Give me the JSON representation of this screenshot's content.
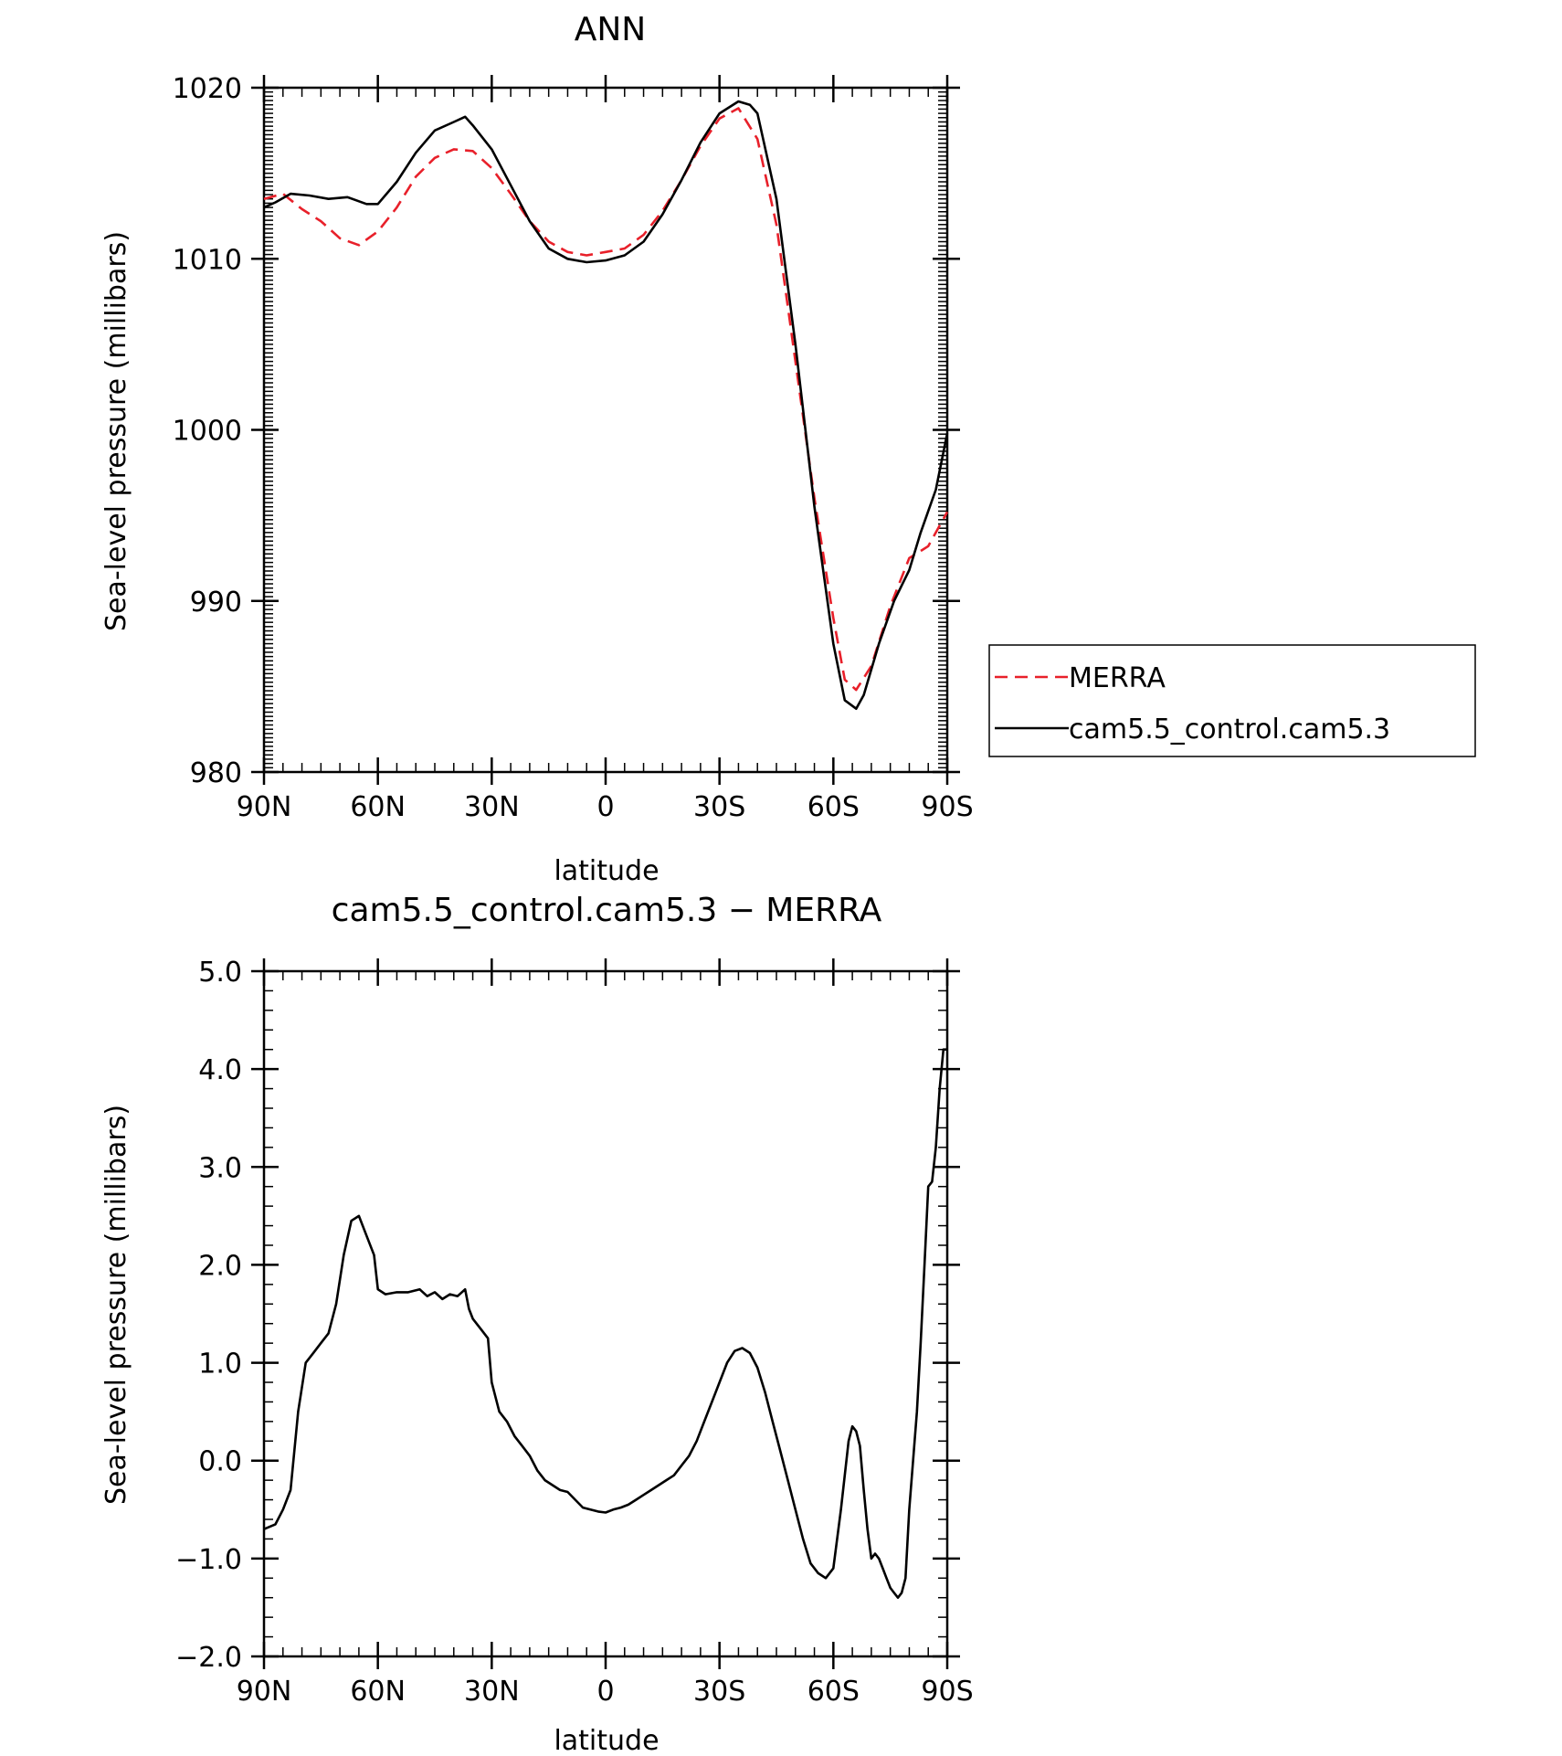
{
  "chart_data": [
    {
      "type": "line",
      "title": "ANN",
      "xlabel": "latitude",
      "ylabel": "Sea-level pressure (millibars)",
      "xlim": [
        90,
        -90
      ],
      "ylim": [
        980,
        1020
      ],
      "x_ticks": [
        {
          "value": 90,
          "label": "90N"
        },
        {
          "value": 60,
          "label": "60N"
        },
        {
          "value": 30,
          "label": "30N"
        },
        {
          "value": 0,
          "label": "0"
        },
        {
          "value": -30,
          "label": "30S"
        },
        {
          "value": -60,
          "label": "60S"
        },
        {
          "value": -90,
          "label": "90S"
        }
      ],
      "y_ticks": [
        {
          "value": 1020,
          "label": "1020"
        },
        {
          "value": 1010,
          "label": "1010"
        },
        {
          "value": 1000,
          "label": "1000"
        },
        {
          "value": 990,
          "label": "990"
        },
        {
          "value": 980,
          "label": "980"
        }
      ],
      "grid": false,
      "legend_position": "right",
      "series": [
        {
          "name": "MERRA",
          "color": "#e8202a",
          "dash": "dashed",
          "x": [
            90,
            85,
            80,
            75,
            70,
            65,
            60,
            55,
            50,
            45,
            40,
            35,
            30,
            25,
            20,
            15,
            10,
            5,
            0,
            -5,
            -10,
            -15,
            -20,
            -25,
            -30,
            -35,
            -40,
            -45,
            -50,
            -55,
            -60,
            -63,
            -66,
            -70,
            -75,
            -80,
            -85,
            -90
          ],
          "y": [
            1013.5,
            1013.8,
            1012.9,
            1012.2,
            1011.2,
            1010.8,
            1011.6,
            1013.0,
            1014.8,
            1015.9,
            1016.4,
            1016.3,
            1015.3,
            1013.8,
            1012.2,
            1011.0,
            1010.4,
            1010.2,
            1010.4,
            1010.6,
            1011.4,
            1012.8,
            1014.6,
            1016.6,
            1018.2,
            1018.8,
            1017.0,
            1012.0,
            1004.0,
            996.0,
            989.0,
            985.4,
            984.8,
            986.2,
            989.7,
            992.5,
            993.2,
            995.2
          ]
        },
        {
          "name": "cam5.5_control.cam5.3",
          "color": "#000000",
          "dash": "solid",
          "x": [
            90,
            87,
            83,
            78,
            73,
            68,
            63,
            60,
            55,
            50,
            45,
            40,
            37,
            35,
            30,
            25,
            20,
            15,
            10,
            5,
            0,
            -5,
            -10,
            -15,
            -20,
            -25,
            -30,
            -35,
            -38,
            -40,
            -45,
            -50,
            -55,
            -60,
            -63,
            -66,
            -68,
            -72,
            -76,
            -80,
            -83,
            -87,
            -90
          ],
          "y": [
            1013.0,
            1013.3,
            1013.8,
            1013.7,
            1013.5,
            1013.6,
            1013.2,
            1013.2,
            1014.5,
            1016.2,
            1017.5,
            1018.0,
            1018.3,
            1017.8,
            1016.4,
            1014.3,
            1012.2,
            1010.6,
            1010.0,
            1009.8,
            1009.9,
            1010.2,
            1011.0,
            1012.6,
            1014.6,
            1016.8,
            1018.5,
            1019.2,
            1019.0,
            1018.5,
            1013.5,
            1005.0,
            995.5,
            987.5,
            984.2,
            983.7,
            984.5,
            987.5,
            990.0,
            991.8,
            994.0,
            996.5,
            999.8
          ]
        }
      ]
    },
    {
      "type": "line",
      "title": "cam5.5_control.cam5.3 − MERRA",
      "xlabel": "latitude",
      "ylabel": "Sea-level pressure (millibars)",
      "xlim": [
        90,
        -90
      ],
      "ylim": [
        -2.0,
        5.0
      ],
      "x_ticks": [
        {
          "value": 90,
          "label": "90N"
        },
        {
          "value": 60,
          "label": "60N"
        },
        {
          "value": 30,
          "label": "30N"
        },
        {
          "value": 0,
          "label": "0"
        },
        {
          "value": -30,
          "label": "30S"
        },
        {
          "value": -60,
          "label": "60S"
        },
        {
          "value": -90,
          "label": "90S"
        }
      ],
      "y_ticks": [
        {
          "value": 5.0,
          "label": "5.0"
        },
        {
          "value": 4.0,
          "label": "4.0"
        },
        {
          "value": 3.0,
          "label": "3.0"
        },
        {
          "value": 2.0,
          "label": "2.0"
        },
        {
          "value": 1.0,
          "label": "1.0"
        },
        {
          "value": 0.0,
          "label": "0.0"
        },
        {
          "value": -1.0,
          "label": "−1.0"
        },
        {
          "value": -2.0,
          "label": "−2.0"
        }
      ],
      "grid": false,
      "series": [
        {
          "color": "#000000",
          "dash": "solid",
          "x": [
            90,
            87,
            85,
            83,
            81,
            79,
            77,
            75,
            73,
            71,
            69,
            67,
            65,
            63,
            61,
            60,
            58,
            55,
            52,
            49,
            47,
            45,
            43,
            41,
            39,
            37,
            36,
            35,
            33,
            31,
            30,
            28,
            26,
            24,
            22,
            20,
            18,
            16,
            14,
            12,
            10,
            8,
            6,
            4,
            2,
            0,
            -2,
            -4,
            -6,
            -8,
            -10,
            -12,
            -14,
            -16,
            -18,
            -20,
            -22,
            -24,
            -26,
            -28,
            -30,
            -32,
            -34,
            -36,
            -38,
            -40,
            -42,
            -44,
            -46,
            -48,
            -50,
            -52,
            -54,
            -56,
            -58,
            -60,
            -62,
            -64,
            -65,
            -66,
            -67,
            -68,
            -69,
            -70,
            -71,
            -72,
            -73,
            -74,
            -75,
            -76,
            -77,
            -78,
            -79,
            -80,
            -81,
            -82,
            -83,
            -84,
            -85,
            -86,
            -87,
            -88,
            -89,
            -90
          ],
          "y": [
            -0.7,
            -0.65,
            -0.5,
            -0.3,
            0.5,
            1.0,
            1.1,
            1.2,
            1.3,
            1.6,
            2.1,
            2.45,
            2.5,
            2.3,
            2.1,
            1.75,
            1.7,
            1.72,
            1.72,
            1.75,
            1.68,
            1.72,
            1.65,
            1.7,
            1.68,
            1.75,
            1.55,
            1.45,
            1.35,
            1.25,
            0.8,
            0.5,
            0.4,
            0.25,
            0.15,
            0.05,
            -0.1,
            -0.2,
            -0.25,
            -0.3,
            -0.32,
            -0.4,
            -0.48,
            -0.5,
            -0.52,
            -0.53,
            -0.5,
            -0.48,
            -0.45,
            -0.4,
            -0.35,
            -0.3,
            -0.25,
            -0.2,
            -0.15,
            -0.05,
            0.05,
            0.2,
            0.4,
            0.6,
            0.8,
            1.0,
            1.12,
            1.15,
            1.1,
            0.95,
            0.7,
            0.4,
            0.1,
            -0.2,
            -0.5,
            -0.8,
            -1.05,
            -1.15,
            -1.2,
            -1.1,
            -0.5,
            0.2,
            0.35,
            0.3,
            0.15,
            -0.3,
            -0.7,
            -1.0,
            -0.95,
            -1.0,
            -1.1,
            -1.2,
            -1.3,
            -1.35,
            -1.4,
            -1.35,
            -1.2,
            -0.5,
            0.0,
            0.5,
            1.2,
            2.0,
            2.8,
            2.85,
            3.2,
            3.8,
            4.2,
            4.2
          ]
        }
      ]
    }
  ],
  "legend": {
    "entries": [
      {
        "label": "MERRA",
        "color": "#e8202a",
        "dash": "dashed"
      },
      {
        "label": "cam5.5_control.cam5.3",
        "color": "#000000",
        "dash": "solid"
      }
    ]
  }
}
